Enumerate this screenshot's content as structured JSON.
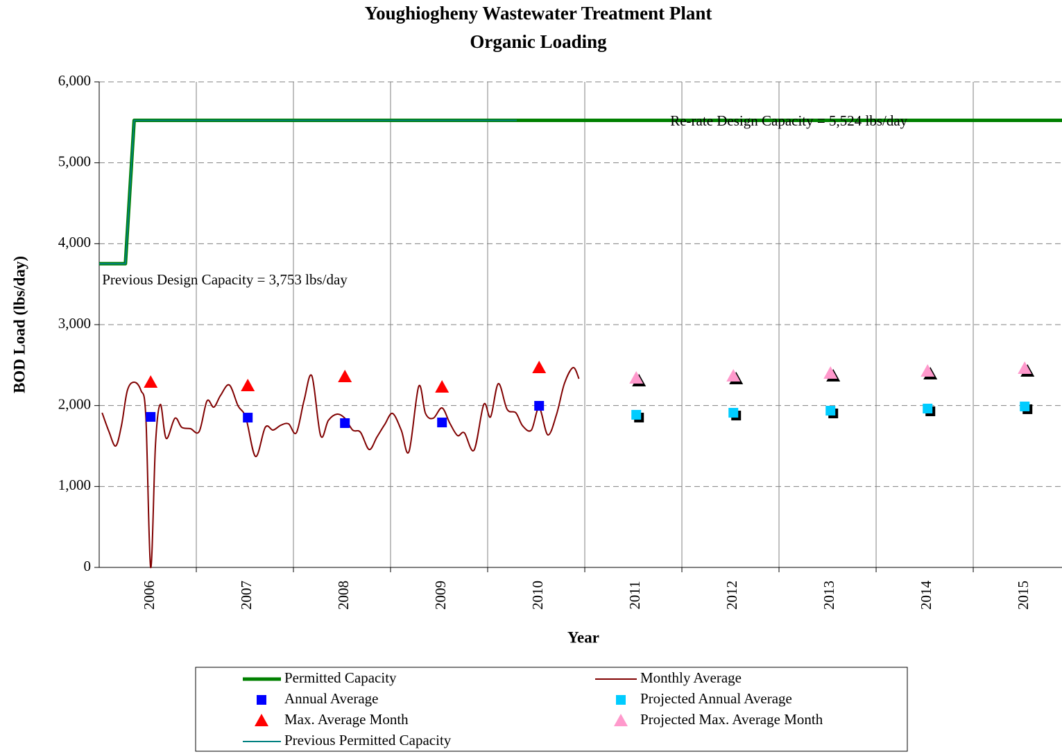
{
  "chart_data": {
    "type": "line",
    "title": "Youghiogheny Wastewater Treatment Plant",
    "subtitle": "Organic Loading",
    "x_label": "Year",
    "y_label": "BOD Load (lbs/day)",
    "xlim": [
      2005.5,
      2015.414
    ],
    "xticks": [
      2006,
      2007,
      2008,
      2009,
      2010,
      2011,
      2012,
      2013,
      2014,
      2015
    ],
    "ylim": [
      0,
      6000
    ],
    "yticks": [
      0,
      {
        "value": 1000,
        "label": "1,000"
      },
      {
        "value": 2000,
        "label": "2,000"
      },
      {
        "value": 3000,
        "label": "3,000"
      },
      {
        "value": 4000,
        "label": "4,000"
      },
      {
        "value": 5000,
        "label": "5,000"
      },
      {
        "value": 6000,
        "label": "6,000"
      }
    ],
    "grid": true,
    "annotations": [
      {
        "text": "Re-rate Design Capacity = 5,524 lbs/day",
        "x": 2011.38,
        "y": 5500
      },
      {
        "text": "Previous Design Capacity = 3,753 lbs/day",
        "x": 2005.53,
        "y": 3540
      }
    ],
    "series": [
      {
        "name": "Permitted Capacity",
        "kind": "line",
        "color": "#008000",
        "width": 5,
        "x": [
          2005.5,
          2005.77,
          2005.86,
          2015.414
        ],
        "values": [
          3753,
          3753,
          5524,
          5524
        ]
      },
      {
        "name": "Monthly Average",
        "kind": "line",
        "color": "#800000",
        "width": 2,
        "smooth": true,
        "x": [
          2005.53,
          2005.6,
          2005.67,
          2005.73,
          2005.79,
          2005.86,
          2005.93,
          2005.98,
          2006.03,
          2006.08,
          2006.13,
          2006.19,
          2006.28,
          2006.35,
          2006.44,
          2006.53,
          2006.61,
          2006.68,
          2006.75,
          2006.84,
          2006.93,
          2007.01,
          2007.11,
          2007.21,
          2007.29,
          2007.37,
          2007.45,
          2007.53,
          2007.61,
          2007.69,
          2007.78,
          2007.86,
          2007.95,
          2008.03,
          2008.11,
          2008.19,
          2008.28,
          2008.36,
          2008.44,
          2008.52,
          2008.61,
          2008.69,
          2008.79,
          2008.86,
          2008.94,
          2009.03,
          2009.11,
          2009.19,
          2009.26,
          2009.36,
          2009.46,
          2009.53,
          2009.61,
          2009.7,
          2009.79,
          2009.86,
          2009.95,
          2010.03,
          2010.12,
          2010.21,
          2010.29,
          2010.38,
          2010.44
        ],
        "values": [
          1911,
          1680,
          1500,
          1757,
          2186,
          2289,
          2186,
          1869,
          0,
          1526,
          2014,
          1594,
          1843,
          1731,
          1714,
          1680,
          2057,
          1980,
          2126,
          2254,
          1997,
          1851,
          1371,
          1731,
          1697,
          1757,
          1774,
          1663,
          2066,
          2366,
          1629,
          1817,
          1894,
          1843,
          1697,
          1671,
          1457,
          1611,
          1766,
          1903,
          1697,
          1431,
          2237,
          1903,
          1843,
          1971,
          1783,
          1629,
          1663,
          1449,
          2014,
          1860,
          2271,
          1954,
          1911,
          1749,
          1697,
          1971,
          1637,
          1894,
          2271,
          2469,
          2331
        ]
      },
      {
        "name": "Annual Average",
        "kind": "scatter",
        "marker": "square",
        "color": "#0000ff",
        "x": [
          2006.03,
          2007.03,
          2008.03,
          2009.03,
          2010.03
        ],
        "values": [
          1860,
          1851,
          1783,
          1791,
          1997
        ]
      },
      {
        "name": "Projected Annual Average",
        "kind": "scatter",
        "marker": "square",
        "color": "#00ccff",
        "shadow": true,
        "x": [
          2011.03,
          2012.03,
          2013.03,
          2014.03,
          2015.03
        ],
        "values": [
          1886,
          1911,
          1937,
          1963,
          1989
        ]
      },
      {
        "name": "Max. Average Month",
        "kind": "scatter",
        "marker": "triangle",
        "color": "#ff0000",
        "x": [
          2006.03,
          2007.03,
          2008.03,
          2009.03,
          2010.03
        ],
        "values": [
          2289,
          2246,
          2357,
          2229,
          2469
        ]
      },
      {
        "name": "Projected Max. Average Month",
        "kind": "scatter",
        "marker": "triangle",
        "color": "#ff99cc",
        "shadow": true,
        "x": [
          2011.03,
          2012.03,
          2013.03,
          2014.03,
          2015.03
        ],
        "values": [
          2340,
          2366,
          2400,
          2426,
          2460
        ]
      },
      {
        "name": "Previous Permitted Capacity",
        "kind": "line",
        "color": "#008080",
        "width": 2,
        "x": [
          2005.5,
          2005.77,
          2005.86,
          2009.8
        ],
        "values": [
          3753,
          3753,
          5524,
          5524
        ]
      }
    ]
  }
}
